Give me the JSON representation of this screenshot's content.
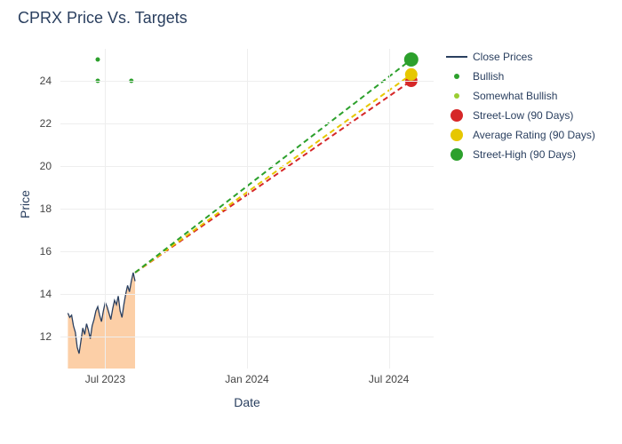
{
  "title": "CPRX Price Vs. Targets",
  "axis": {
    "x_title": "Date",
    "y_title": "Price",
    "ylim": [
      10.5,
      25.5
    ],
    "y_ticks": [
      12,
      14,
      16,
      18,
      20,
      22,
      24
    ],
    "x_ticks": [
      {
        "label": "Jul 2023",
        "pos": 0.12
      },
      {
        "label": "Jan 2024",
        "pos": 0.5
      },
      {
        "label": "Jul 2024",
        "pos": 0.88
      }
    ],
    "grid_color": "#eeeeee",
    "background_color": "#ffffff",
    "title_color": "#2a3f5f",
    "title_fontsize": 18,
    "label_fontsize": 12,
    "axis_title_fontsize": 14
  },
  "series": {
    "close": {
      "label": "Close Prices",
      "color": "#2a3f5f",
      "area_color": "#fbbf8a",
      "area_opacity": 0.75,
      "line_width": 1.3,
      "data": [
        {
          "x": 0.02,
          "y": 13.1
        },
        {
          "x": 0.025,
          "y": 12.9
        },
        {
          "x": 0.03,
          "y": 13.0
        },
        {
          "x": 0.035,
          "y": 12.5
        },
        {
          "x": 0.04,
          "y": 12.2
        },
        {
          "x": 0.045,
          "y": 11.5
        },
        {
          "x": 0.05,
          "y": 11.2
        },
        {
          "x": 0.055,
          "y": 11.8
        },
        {
          "x": 0.06,
          "y": 12.4
        },
        {
          "x": 0.065,
          "y": 12.1
        },
        {
          "x": 0.07,
          "y": 12.6
        },
        {
          "x": 0.075,
          "y": 12.3
        },
        {
          "x": 0.08,
          "y": 11.9
        },
        {
          "x": 0.085,
          "y": 12.5
        },
        {
          "x": 0.09,
          "y": 12.8
        },
        {
          "x": 0.095,
          "y": 13.2
        },
        {
          "x": 0.1,
          "y": 13.4
        },
        {
          "x": 0.105,
          "y": 13.0
        },
        {
          "x": 0.11,
          "y": 12.7
        },
        {
          "x": 0.115,
          "y": 13.2
        },
        {
          "x": 0.12,
          "y": 13.6
        },
        {
          "x": 0.125,
          "y": 13.4
        },
        {
          "x": 0.13,
          "y": 13.1
        },
        {
          "x": 0.135,
          "y": 12.8
        },
        {
          "x": 0.14,
          "y": 13.3
        },
        {
          "x": 0.145,
          "y": 13.7
        },
        {
          "x": 0.15,
          "y": 13.5
        },
        {
          "x": 0.155,
          "y": 13.9
        },
        {
          "x": 0.16,
          "y": 13.2
        },
        {
          "x": 0.165,
          "y": 12.9
        },
        {
          "x": 0.17,
          "y": 13.5
        },
        {
          "x": 0.175,
          "y": 14.0
        },
        {
          "x": 0.18,
          "y": 14.4
        },
        {
          "x": 0.185,
          "y": 14.1
        },
        {
          "x": 0.19,
          "y": 14.6
        },
        {
          "x": 0.195,
          "y": 15.0
        },
        {
          "x": 0.2,
          "y": 14.6
        }
      ]
    },
    "bullish": {
      "label": "Bullish",
      "color": "#2ca02c",
      "marker_size": 5,
      "points": [
        {
          "x": 0.1,
          "y": 25.0
        },
        {
          "x": 0.1,
          "y": 24.0
        },
        {
          "x": 0.19,
          "y": 24.0
        }
      ]
    },
    "somewhat_bullish": {
      "label": "Somewhat Bullish",
      "color": "#9acd32",
      "marker_size": 5,
      "points": []
    },
    "street_low": {
      "label": "Street-Low (90 Days)",
      "color": "#d62728",
      "marker_size": 14,
      "line_dash": "6,4",
      "line_width": 2,
      "from": {
        "x": 0.2,
        "y": 15.0
      },
      "to": {
        "x": 0.94,
        "y": 24.0
      }
    },
    "average_rating": {
      "label": "Average Rating (90 Days)",
      "color": "#e6c700",
      "marker_size": 14,
      "line_dash": "6,4",
      "line_width": 2,
      "from": {
        "x": 0.2,
        "y": 15.0
      },
      "to": {
        "x": 0.94,
        "y": 24.3
      }
    },
    "street_high": {
      "label": "Street-High (90 Days)",
      "color": "#2ca02c",
      "marker_size": 16,
      "line_dash": "6,4",
      "line_width": 2,
      "from": {
        "x": 0.2,
        "y": 15.0
      },
      "to": {
        "x": 0.94,
        "y": 25.0
      }
    }
  },
  "legend_order": [
    "close",
    "bullish",
    "somewhat_bullish",
    "street_low",
    "average_rating",
    "street_high"
  ]
}
